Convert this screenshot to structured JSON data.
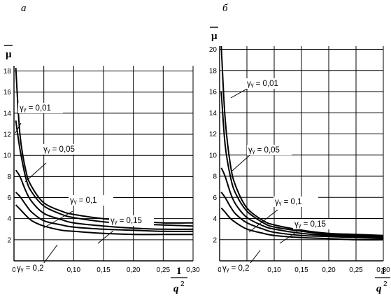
{
  "chart_data": [
    {
      "type": "line",
      "panel_label": "а",
      "y_axis_symbol": "μ",
      "x_axis_symbol": {
        "numerator": "1",
        "denominator": "q",
        "exponent": "2"
      },
      "xlim": [
        0,
        0.3
      ],
      "ylim": [
        0,
        18.5
      ],
      "x_ticks": [
        "0",
        "0,05",
        "0,10",
        "0,15",
        "0,20",
        "0,25",
        "0,30"
      ],
      "x_tick_values": [
        0,
        0.05,
        0.1,
        0.15,
        0.2,
        0.25,
        0.3
      ],
      "y_ticks": [
        "2",
        "4",
        "6",
        "8",
        "10",
        "12",
        "14",
        "16",
        "18"
      ],
      "y_tick_values": [
        2,
        4,
        6,
        8,
        10,
        12,
        14,
        16,
        18
      ],
      "grid": true,
      "series": [
        {
          "name": "γy = 0,01",
          "x": [
            0.003,
            0.01,
            0.02,
            0.03,
            0.05,
            0.08,
            0.1,
            0.15,
            0.2,
            0.25,
            0.3
          ],
          "y": [
            18.3,
            12.0,
            8.5,
            7.0,
            5.5,
            4.7,
            4.4,
            4.0,
            3.8,
            3.6,
            3.6
          ]
        },
        {
          "name": "γy = 0,05",
          "x": [
            0.003,
            0.01,
            0.02,
            0.03,
            0.05,
            0.08,
            0.1,
            0.15,
            0.2,
            0.25,
            0.3
          ],
          "y": [
            13.3,
            10.6,
            7.8,
            6.5,
            5.2,
            4.4,
            4.1,
            3.7,
            3.5,
            3.4,
            3.3
          ]
        },
        {
          "name": "γy = 0,1",
          "x": [
            0.003,
            0.01,
            0.02,
            0.03,
            0.05,
            0.08,
            0.1,
            0.15,
            0.2,
            0.25,
            0.3
          ],
          "y": [
            8.6,
            8.0,
            6.6,
            5.6,
            4.5,
            3.9,
            3.6,
            3.3,
            3.1,
            3.0,
            3.0
          ]
        },
        {
          "name": "γy = 0,15",
          "x": [
            0.003,
            0.01,
            0.02,
            0.03,
            0.05,
            0.08,
            0.1,
            0.15,
            0.2,
            0.25,
            0.3
          ],
          "y": [
            6.5,
            6.1,
            5.3,
            4.6,
            3.8,
            3.4,
            3.2,
            3.0,
            2.9,
            2.8,
            2.8
          ]
        },
        {
          "name": "γy = 0,2",
          "x": [
            0.003,
            0.01,
            0.02,
            0.03,
            0.05,
            0.08,
            0.1,
            0.15,
            0.2,
            0.25,
            0.3
          ],
          "y": [
            5.3,
            4.9,
            4.3,
            3.8,
            3.3,
            2.9,
            2.8,
            2.6,
            2.5,
            2.5,
            2.5
          ]
        }
      ],
      "annotations": [
        "γy = 0,01",
        "γy = 0,05",
        "γy = 0,1",
        "γy = 0,15",
        "γy = 0,2"
      ]
    },
    {
      "type": "line",
      "panel_label": "б",
      "y_axis_symbol": "μ",
      "x_axis_symbol": {
        "numerator": "1",
        "denominator": "q",
        "exponent": "2"
      },
      "xlim": [
        0,
        0.3
      ],
      "ylim": [
        0,
        20.3
      ],
      "x_ticks": [
        "0",
        "0,05",
        "0,10",
        "0,15",
        "0,20",
        "0,25",
        "0,30"
      ],
      "x_tick_values": [
        0,
        0.05,
        0.1,
        0.15,
        0.2,
        0.25,
        0.3
      ],
      "y_ticks": [
        "2",
        "4",
        "6",
        "8",
        "10",
        "12",
        "14",
        "16",
        "18",
        "20"
      ],
      "y_tick_values": [
        2,
        4,
        6,
        8,
        10,
        12,
        14,
        16,
        18,
        20
      ],
      "grid": true,
      "series": [
        {
          "name": "γy = 0,01",
          "x": [
            0.003,
            0.01,
            0.02,
            0.03,
            0.05,
            0.08,
            0.1,
            0.15,
            0.2,
            0.25,
            0.3
          ],
          "y": [
            20.3,
            13.5,
            9.0,
            7.0,
            5.0,
            3.8,
            3.4,
            2.9,
            2.6,
            2.5,
            2.4
          ]
        },
        {
          "name": "γy = 0,05",
          "x": [
            0.003,
            0.01,
            0.02,
            0.03,
            0.05,
            0.08,
            0.1,
            0.15,
            0.2,
            0.25,
            0.3
          ],
          "y": [
            16.0,
            11.0,
            7.9,
            6.3,
            4.7,
            3.6,
            3.2,
            2.8,
            2.5,
            2.4,
            2.3
          ]
        },
        {
          "name": "γy = 0,1",
          "x": [
            0.003,
            0.01,
            0.02,
            0.03,
            0.05,
            0.08,
            0.1,
            0.15,
            0.2,
            0.25,
            0.3
          ],
          "y": [
            8.8,
            8.0,
            6.4,
            5.3,
            4.1,
            3.3,
            3.0,
            2.6,
            2.4,
            2.3,
            2.2
          ]
        },
        {
          "name": "γy = 0,15",
          "x": [
            0.003,
            0.01,
            0.02,
            0.03,
            0.05,
            0.08,
            0.1,
            0.15,
            0.2,
            0.25,
            0.3
          ],
          "y": [
            6.5,
            6.0,
            5.1,
            4.4,
            3.6,
            3.0,
            2.7,
            2.4,
            2.3,
            2.2,
            2.1
          ]
        },
        {
          "name": "γy = 0,2",
          "x": [
            0.003,
            0.01,
            0.02,
            0.03,
            0.05,
            0.08,
            0.1,
            0.15,
            0.2,
            0.25,
            0.3
          ],
          "y": [
            5.0,
            4.6,
            4.0,
            3.6,
            3.0,
            2.6,
            2.4,
            2.2,
            2.1,
            2.0,
            2.0
          ]
        }
      ],
      "annotations": [
        "γy = 0,01",
        "γy = 0,05",
        "γy = 0,1",
        "γy = 0,15",
        "γy = 0,2"
      ]
    }
  ]
}
